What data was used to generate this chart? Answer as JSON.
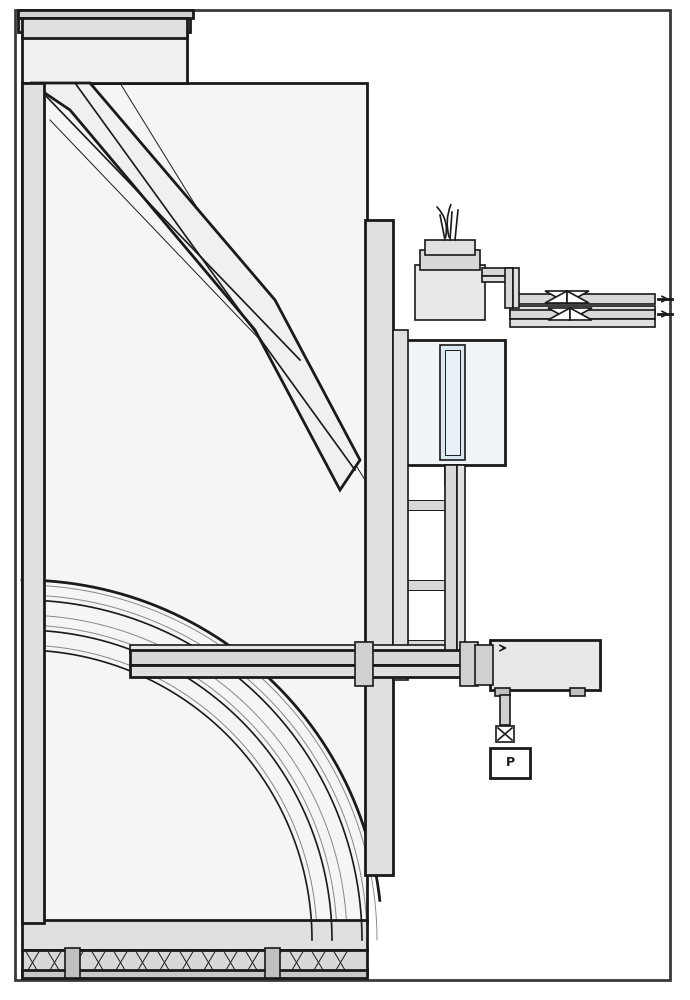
{
  "bg_color": "#ffffff",
  "line_color": "#3a3a3a",
  "line_color_dark": "#1a1a1a",
  "fill_light": "#e8e8e8",
  "fill_medium": "#d0d0d0",
  "fill_dark": "#b0b0b0",
  "fill_liquid": "#c8d8e8",
  "lw_thick": 2.0,
  "lw_medium": 1.2,
  "lw_thin": 0.7
}
